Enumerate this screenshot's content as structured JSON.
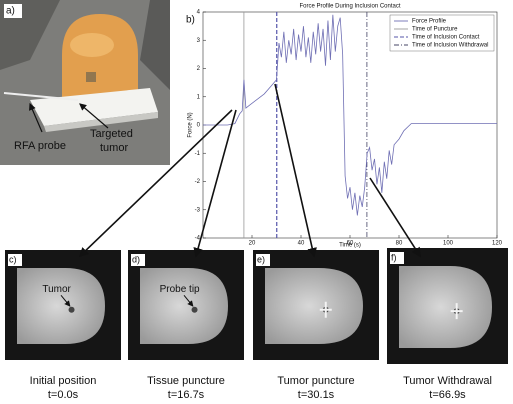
{
  "panel_a": {
    "label": "a)",
    "probe_label": "RFA probe",
    "tumor_label": [
      "Targeted",
      "tumor"
    ]
  },
  "chart_data": {
    "type": "line",
    "panel_label": "b)",
    "title": "Force Profile During Inclusion Contact",
    "x_label": "Time (s)",
    "y_label": "Force (N)",
    "x": [
      0,
      5,
      10,
      13,
      15,
      16,
      16.7,
      17.5,
      19,
      22,
      25,
      28,
      30,
      31,
      32,
      33,
      34,
      35,
      36,
      37,
      38,
      39,
      40,
      41,
      42,
      43,
      44,
      45,
      46,
      47,
      48,
      49,
      50,
      51,
      52,
      53,
      54,
      55,
      56,
      57,
      58,
      59,
      60,
      61,
      62,
      63,
      64,
      65,
      66,
      67,
      68,
      69,
      70,
      71,
      72,
      73,
      74,
      75,
      76,
      77,
      78,
      80,
      82,
      85,
      90,
      100,
      110,
      120
    ],
    "series": [
      {
        "name": "Force Profile",
        "color": "#6f6fb4",
        "values": [
          0,
          0,
          0,
          0.05,
          0.4,
          0.5,
          1.6,
          0.6,
          0.7,
          0.9,
          1.1,
          1.4,
          1.6,
          2.9,
          2.4,
          3.3,
          2.2,
          3.0,
          2.5,
          3.4,
          2.3,
          3.2,
          2.6,
          3.5,
          2.4,
          3.1,
          2.2,
          3.3,
          2.5,
          3.6,
          2.6,
          3.4,
          2.1,
          3.7,
          2.3,
          3.9,
          2.6,
          3.5,
          3.8,
          2.5,
          -1.8,
          -2.6,
          -2.2,
          -3.0,
          -2.4,
          -3.2,
          -2.5,
          -2.9,
          -2.2,
          -1.0,
          -0.8,
          -1.6,
          -1.2,
          -2.1,
          -1.5,
          -2.4,
          -1.3,
          -1.9,
          -0.9,
          -1.4,
          -0.7,
          -0.5,
          -0.2,
          0.05,
          0.05,
          0.05,
          0.05,
          0.05
        ]
      }
    ],
    "events": [
      {
        "name": "Time of Puncture",
        "x": 16.7,
        "color": "#999999",
        "style": "solid"
      },
      {
        "name": "Time of Inclusion Contact",
        "x": 30.1,
        "color": "#5555aa",
        "style": "dashed"
      },
      {
        "name": "Time of Inclusion Withdrawal",
        "x": 66.9,
        "color": "#444466",
        "style": "dashdot"
      }
    ],
    "xlim": [
      0,
      120
    ],
    "ylim": [
      -4,
      4
    ],
    "xticks": [
      20,
      40,
      60,
      80,
      100,
      120
    ],
    "yticks": [
      -4,
      -3,
      -2,
      -1,
      0,
      1,
      2,
      3,
      4
    ],
    "legend": "upper right"
  },
  "mri_panels": [
    {
      "label": "c)",
      "annotation": "Tumor",
      "caption": "Initial position",
      "time": "t=0.0s"
    },
    {
      "label": "d)",
      "annotation": "Probe tip",
      "caption": "Tissue puncture",
      "time": "t=16.7s"
    },
    {
      "label": "e)",
      "caption": "Tumor puncture",
      "time": "t=30.1s"
    },
    {
      "label": "f)",
      "caption": "Tumor Withdrawal",
      "time": "t=66.9s"
    }
  ]
}
